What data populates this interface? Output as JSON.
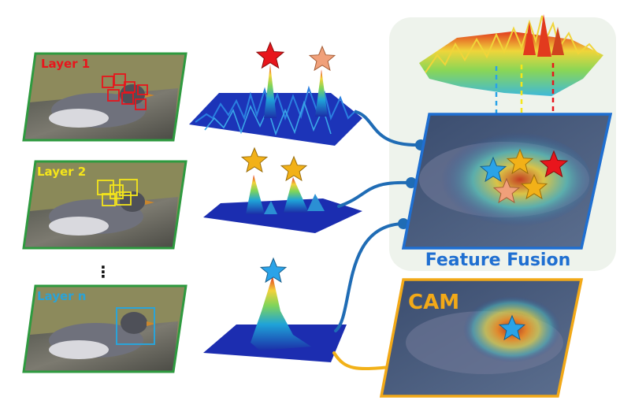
{
  "layers": [
    {
      "label": "Layer 1",
      "color": "#e8151c"
    },
    {
      "label": "Layer 2",
      "color": "#f5e61a"
    },
    {
      "label": "Layer n",
      "color": "#2aa3d8"
    }
  ],
  "ellipsis": "⋮",
  "fusion": {
    "label": "Feature Fusion",
    "color": "#1f6fd1"
  },
  "cam": {
    "label": "CAM",
    "color": "#f2a918"
  },
  "colors": {
    "frame_green": "#2e9a3f",
    "connector_blue": "#1f6cb5",
    "connector_orange": "#f2b118",
    "fusion_panel": "#eef3ec",
    "star_red": "#e8151c",
    "star_orange": "#f2b118",
    "star_peach": "#f0a07a",
    "star_blue": "#2aa3e8"
  },
  "icons": [
    "bird-photo",
    "response-surface",
    "star-marker",
    "heatmap-overlay"
  ]
}
